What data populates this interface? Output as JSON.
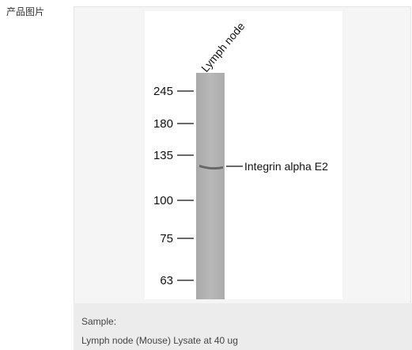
{
  "section_label": "产品图片",
  "image": {
    "lane_label": "Lymph node",
    "markers": [
      "245",
      "180",
      "135",
      "100",
      "75",
      "63"
    ],
    "band_label": "Integrin alpha E2"
  },
  "caption": {
    "heading": "Sample:",
    "text": "Lymph node (Mouse) Lysate at 40 ug"
  }
}
